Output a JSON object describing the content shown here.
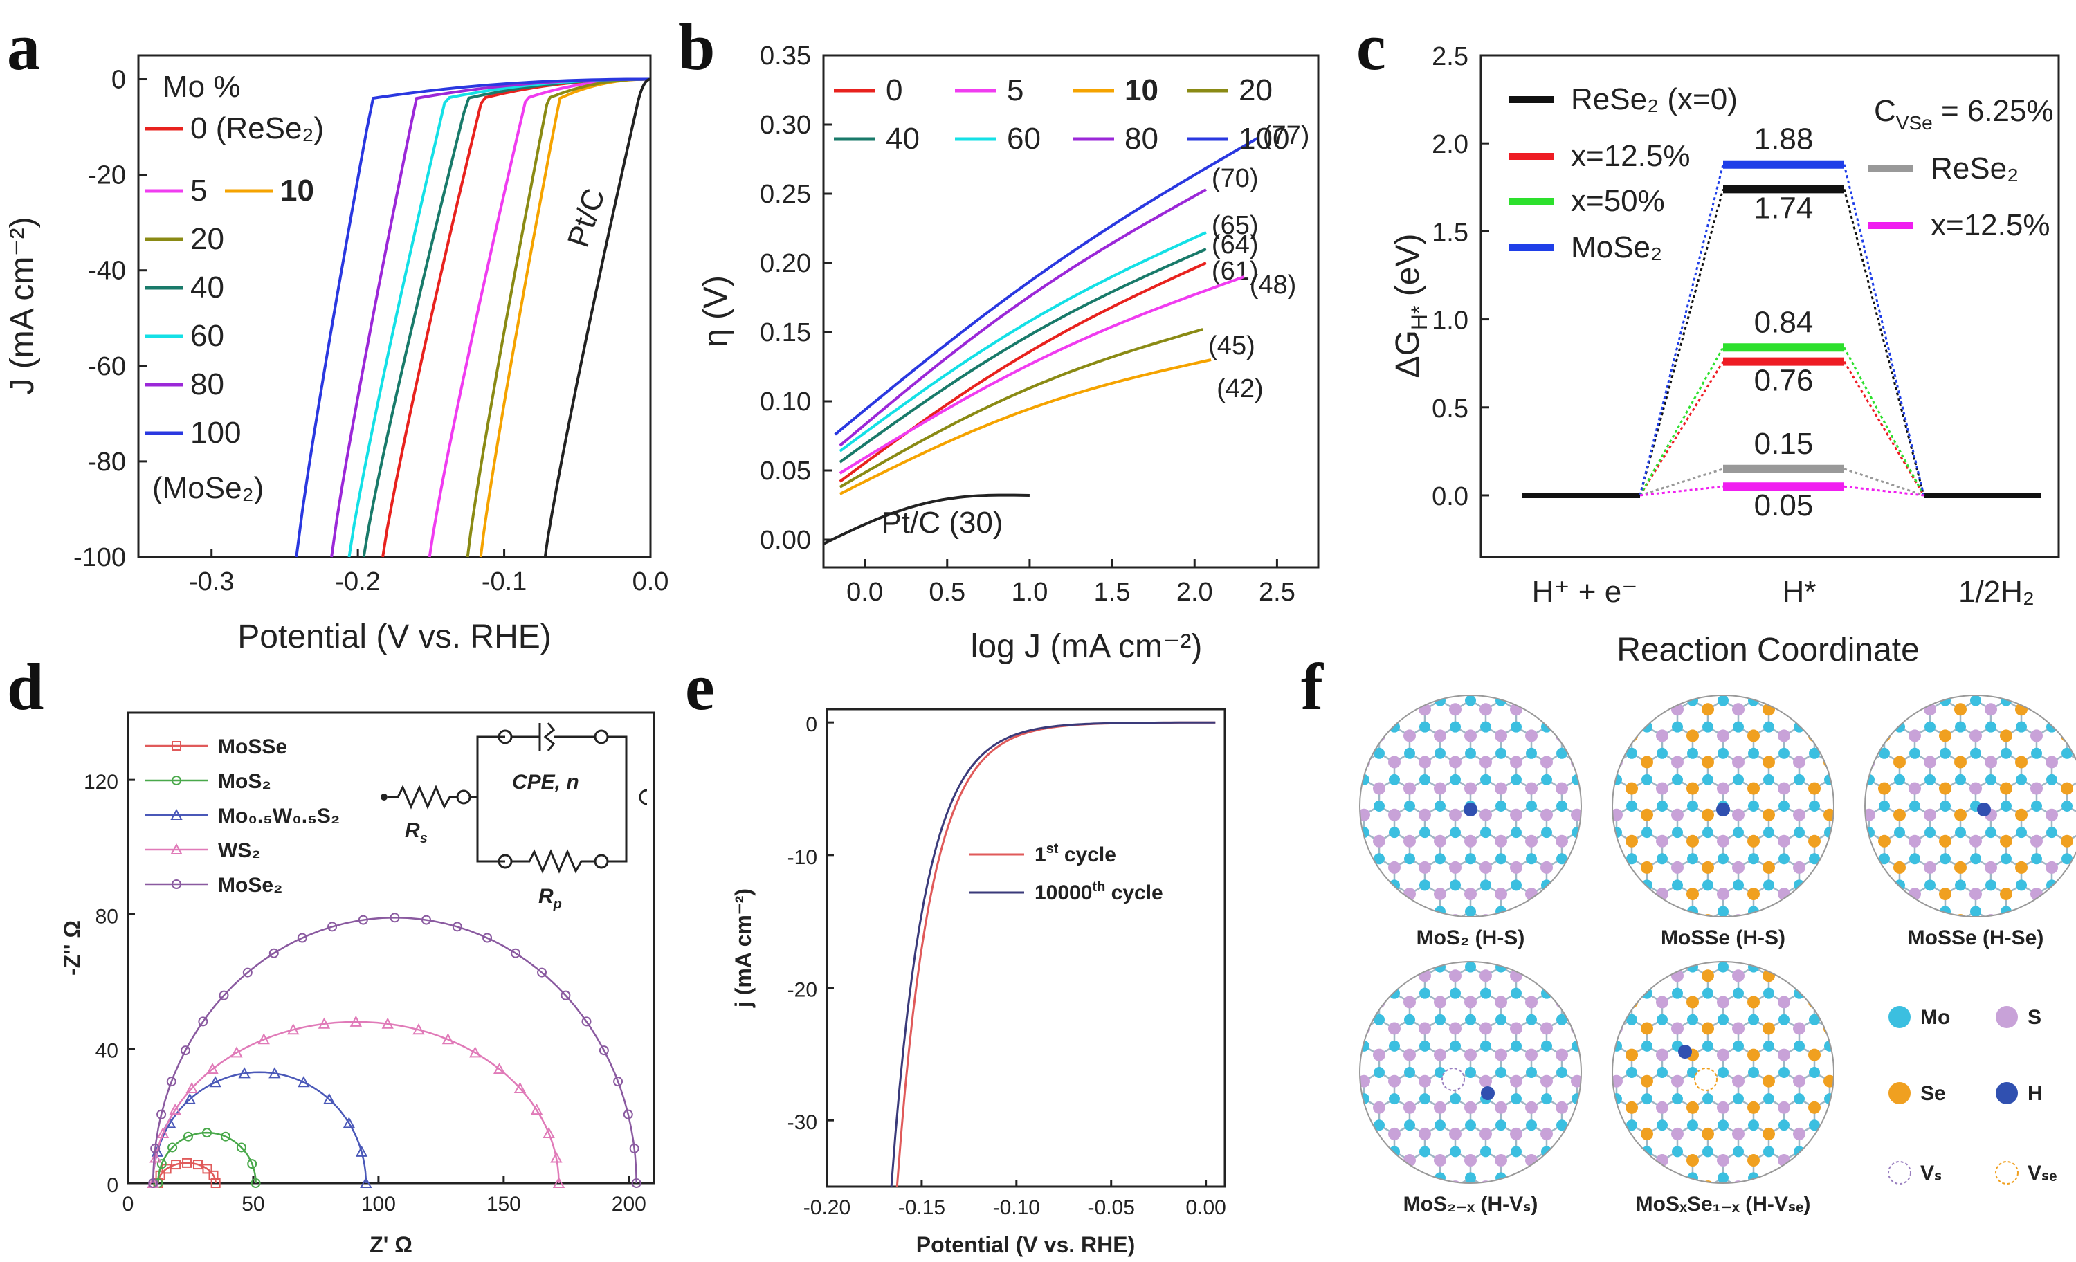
{
  "panels": {
    "a": {
      "letter": "a",
      "chart_data": {
        "type": "line",
        "xlabel": "Potential (V vs. RHE)",
        "ylabel": "J (mA cm⁻²)",
        "xlim": [
          -0.35,
          0.0
        ],
        "ylim": [
          -100,
          5
        ],
        "xticks": [
          "-0.3",
          "-0.2",
          "-0.1",
          "0.0"
        ],
        "xtick_values": [
          -0.3,
          -0.2,
          -0.1,
          0.0
        ],
        "yticks": [
          "0",
          "-20",
          "-40",
          "-60",
          "-80",
          "-100"
        ],
        "ytick_values": [
          0,
          -20,
          -40,
          -60,
          -80,
          -100
        ],
        "legend_title": "Mo %",
        "annotation": "Pt/C",
        "series": [
          {
            "name": "0 (ReSe₂)",
            "color": "#e8221e",
            "x100": -0.183,
            "onset": -0.115
          },
          {
            "name": "5",
            "color": "#f03cf0",
            "x100": -0.151,
            "onset": -0.085
          },
          {
            "name": "10",
            "color": "#f5a300",
            "x100": -0.116,
            "onset": -0.062
          },
          {
            "name": "20",
            "color": "#8a8a14",
            "x100": -0.125,
            "onset": -0.07
          },
          {
            "name": "40",
            "color": "#197a6a",
            "x100": -0.196,
            "onset": -0.125
          },
          {
            "name": "60",
            "color": "#14e0e6",
            "x100": -0.206,
            "onset": -0.14
          },
          {
            "name": "80",
            "color": "#9b28d8",
            "x100": -0.218,
            "onset": -0.16
          },
          {
            "name": "100",
            "color": "#2a38e0",
            "x100": -0.242,
            "onset": -0.19
          },
          {
            "name": "Pt/C",
            "color": "#222222",
            "x100": -0.072,
            "onset": -0.008
          }
        ],
        "legend_rows": [
          "0 (ReSe₂)",
          "5",
          "10",
          "20",
          "40",
          "60",
          "80",
          "100",
          "(MoSe₂)"
        ]
      }
    },
    "b": {
      "letter": "b",
      "chart_data": {
        "type": "line",
        "xlabel": "log J (mA cm⁻²)",
        "ylabel": "η (V)",
        "xlim": [
          -0.25,
          2.75
        ],
        "ylim": [
          -0.02,
          0.35
        ],
        "xticks": [
          "0.0",
          "0.5",
          "1.0",
          "1.5",
          "2.0",
          "2.5"
        ],
        "xtick_values": [
          0,
          0.5,
          1.0,
          1.5,
          2.0,
          2.5
        ],
        "yticks": [
          "0.00",
          "0.05",
          "0.10",
          "0.15",
          "0.20",
          "0.25",
          "0.30",
          "0.35"
        ],
        "ytick_values": [
          0,
          0.05,
          0.1,
          0.15,
          0.2,
          0.25,
          0.3,
          0.35
        ],
        "series": [
          {
            "name": "0",
            "color": "#e8221e",
            "x": [
              -0.15,
              2.07
            ],
            "y": [
              0.042,
              0.2
            ],
            "label": "(61)"
          },
          {
            "name": "5",
            "color": "#f03cf0",
            "x": [
              -0.15,
              2.3
            ],
            "y": [
              0.048,
              0.19
            ],
            "label": "(48)"
          },
          {
            "name": "10",
            "color": "#f5a300",
            "x": [
              -0.15,
              2.1
            ],
            "y": [
              0.033,
              0.13
            ],
            "label": "(42)"
          },
          {
            "name": "20",
            "color": "#8a8a14",
            "x": [
              -0.15,
              2.05
            ],
            "y": [
              0.038,
              0.152
            ],
            "label": "(45)"
          },
          {
            "name": "40",
            "color": "#197a6a",
            "x": [
              -0.15,
              2.07
            ],
            "y": [
              0.056,
              0.21
            ],
            "label": "(64)"
          },
          {
            "name": "60",
            "color": "#14e0e6",
            "x": [
              -0.15,
              2.07
            ],
            "y": [
              0.064,
              0.222
            ],
            "label": "(65)"
          },
          {
            "name": "80",
            "color": "#9b28d8",
            "x": [
              -0.15,
              2.07
            ],
            "y": [
              0.068,
              0.253
            ],
            "label": "(70)"
          },
          {
            "name": "100",
            "color": "#2a38e0",
            "x": [
              -0.18,
              2.38
            ],
            "y": [
              0.076,
              0.29
            ],
            "label": "(77)"
          },
          {
            "name": "Pt/C",
            "color": "#222222",
            "x": [
              -0.25,
              1.0
            ],
            "y": [
              -0.003,
              0.032
            ],
            "label": "Pt/C (30)"
          }
        ]
      }
    },
    "c": {
      "letter": "c",
      "chart_data": {
        "type": "bar",
        "xlabel": "Reaction Coordinate",
        "ylabel": "ΔG",
        "ylabel_sub": "H*",
        "ylabel_unit": " (eV)",
        "ylim": [
          -0.35,
          2.5
        ],
        "yticks": [
          "0.0",
          "0.5",
          "1.0",
          "1.5",
          "2.0",
          "2.5"
        ],
        "ytick_values": [
          0,
          0.5,
          1.0,
          1.5,
          2.0,
          2.5
        ],
        "categories": [
          "H⁺ + e⁻",
          "H*",
          "1/2H₂"
        ],
        "conc_label": "C",
        "conc_sub": "VSe",
        "conc_value": " = 6.25%",
        "series": [
          {
            "name": "ReSe₂ (x=0)",
            "color": "#111111",
            "value": 1.74
          },
          {
            "name": "x=12.5%",
            "color": "#ee1c24",
            "value": 0.76
          },
          {
            "name": "x=50%",
            "color": "#2de02d",
            "value": 0.84
          },
          {
            "name": "MoSe₂",
            "color": "#1f3fe8",
            "value": 1.88
          },
          {
            "name": "ReSe₂",
            "color": "#999999",
            "value": 0.15
          },
          {
            "name": "x=12.5%",
            "color": "#f01ef0",
            "value": 0.05
          }
        ],
        "value_labels": [
          "1.74",
          "0.76",
          "0.84",
          "1.88",
          "0.15",
          "0.05"
        ]
      }
    },
    "d": {
      "letter": "d",
      "chart_data": {
        "type": "scatter",
        "xlabel": "Z' Ω",
        "ylabel": "-Z'' Ω",
        "xlim": [
          0,
          210
        ],
        "ylim": [
          0,
          140
        ],
        "xticks": [
          "0",
          "50",
          "100",
          "150",
          "200"
        ],
        "xtick_values": [
          0,
          50,
          100,
          150,
          200
        ],
        "yticks": [
          "0",
          "40",
          "80",
          "120"
        ],
        "ytick_values": [
          0,
          40,
          80,
          120
        ],
        "series": [
          {
            "name": "MoSSe",
            "color": "#e05a5a",
            "r0": 12,
            "r1": 35,
            "peak": 6
          },
          {
            "name": "MoS₂",
            "color": "#49a84a",
            "r0": 12,
            "r1": 51,
            "peak": 15
          },
          {
            "name": "Mo₀.₅W₀.₅S₂",
            "color": "#4a58b8",
            "r0": 10,
            "r1": 95,
            "peak": 33
          },
          {
            "name": "WS₂",
            "color": "#e07ab8",
            "r0": 10,
            "r1": 172,
            "peak": 48
          },
          {
            "name": "MoSe₂",
            "color": "#8a5aa0",
            "r0": 10,
            "r1": 203,
            "peak": 79
          }
        ],
        "circuit": {
          "cpe": "CPE, n",
          "rs": "R",
          "rs_sub": "s",
          "rp": "R",
          "rp_sub": "p"
        }
      }
    },
    "e": {
      "letter": "e",
      "chart_data": {
        "type": "line",
        "xlabel": "Potential (V vs. RHE)",
        "ylabel": "j (mA cm⁻²)",
        "xlim": [
          -0.2,
          0.01
        ],
        "ylim": [
          -35,
          1
        ],
        "xticks": [
          "-0.20",
          "-0.15",
          "-0.10",
          "-0.05",
          "0.00"
        ],
        "xtick_values": [
          -0.2,
          -0.15,
          -0.1,
          -0.05,
          0.0
        ],
        "yticks": [
          "0",
          "-10",
          "-20",
          "-30"
        ],
        "ytick_values": [
          0,
          -10,
          -20,
          -30
        ],
        "series": [
          {
            "name": "1",
            "sup": "st",
            "suffix": " cycle",
            "color": "#e05a5a",
            "x35": -0.163
          },
          {
            "name": "10000",
            "sup": "th",
            "suffix": " cycle",
            "color": "#3a3a7a",
            "x35": -0.166
          }
        ]
      }
    },
    "f": {
      "letter": "f",
      "structures": [
        {
          "label": "MoS₂ (H-S)",
          "sel": false
        },
        {
          "label": "MoSSe (H-S)",
          "sel": true
        },
        {
          "label": "MoSSe (H-Se)",
          "sel": true
        },
        {
          "label": "MoS₂₋ₓ (H-Vₛ)",
          "sel": false
        },
        {
          "label": "MoSₓSe₁₋ₓ (H-Vₛₑ)",
          "sel": true
        }
      ],
      "legend": [
        {
          "label": "Mo",
          "color": "#3bbfe0",
          "kind": "ball"
        },
        {
          "label": "S",
          "color": "#c8a2d8",
          "kind": "ball"
        },
        {
          "label": "Se",
          "color": "#f0a020",
          "kind": "ball"
        },
        {
          "label": "H",
          "color": "#3050b0",
          "kind": "ball"
        },
        {
          "label": "Vₛ",
          "color": "#9a80c0",
          "kind": "vac"
        },
        {
          "label": "Vₛₑ",
          "color": "#f0a020",
          "kind": "vac"
        }
      ],
      "colors": {
        "mo": "#3bbfe0",
        "s": "#c8a2d8",
        "se": "#f0a020",
        "h": "#3050b0",
        "bond": "#9fb6c4"
      }
    }
  }
}
